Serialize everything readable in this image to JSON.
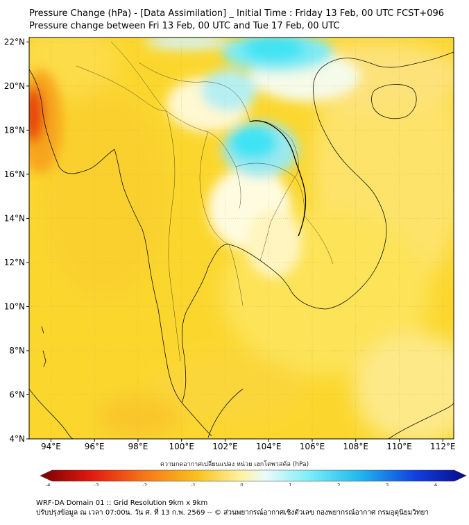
{
  "header": {
    "title": "Pressure Change (hPa) - [Data Assimilation] _ Initial Time : Friday 13 Feb, 00 UTC FCST+096",
    "subtitle": "Pressure change between Fri 13 Feb, 00 UTC and Tue 17 Feb, 00 UTC"
  },
  "map": {
    "lat_labels": [
      "22°N",
      "20°N",
      "18°N",
      "16°N",
      "14°N",
      "12°N",
      "10°N",
      "8°N",
      "6°N",
      "4°N"
    ],
    "lat_values": [
      22,
      20,
      18,
      16,
      14,
      12,
      10,
      8,
      6,
      4
    ],
    "lon_labels": [
      "94°E",
      "96°E",
      "98°E",
      "100°E",
      "102°E",
      "104°E",
      "106°E",
      "108°E",
      "110°E",
      "112°E"
    ],
    "lon_values": [
      94,
      96,
      98,
      100,
      102,
      104,
      106,
      108,
      110,
      112
    ],
    "lon_range": [
      93,
      112.5
    ],
    "lat_range": [
      4,
      22.2
    ],
    "background_color": "#fbd72e",
    "colors": {
      "strong_fall": "#e8460e",
      "fall": "#f7a51c",
      "slight_fall": "#fce55a",
      "neutral": "#fffbe0",
      "rise": "#9be8ee",
      "strong_rise": "#3fe3f4"
    }
  },
  "colorbar": {
    "label": "ความกดอากาศเปลี่ยนแปลง หน่วย เฮกโตพาสคัล (hPa)",
    "ticks": [
      "-4",
      "-3",
      "-2",
      "-1",
      "0",
      "1",
      "2",
      "3",
      "4"
    ],
    "tick_values": [
      -4,
      -3,
      -2,
      -1,
      0,
      1,
      2,
      3,
      4
    ],
    "range": [
      -4,
      4
    ]
  },
  "footer": {
    "line1": "WRF-DA Domain 01 :: Grid Resolution 9km x 9km",
    "line2": "ปรับปรุงข้อมูล ณ เวลา 07:00น. วัน ศ. ที่ 13 ก.พ. 2569 -- © ส่วนพยากรณ์อากาศเชิงตัวเลข กองพยากรณ์อากาศ กรมอุตุนิยมวิทยา"
  }
}
